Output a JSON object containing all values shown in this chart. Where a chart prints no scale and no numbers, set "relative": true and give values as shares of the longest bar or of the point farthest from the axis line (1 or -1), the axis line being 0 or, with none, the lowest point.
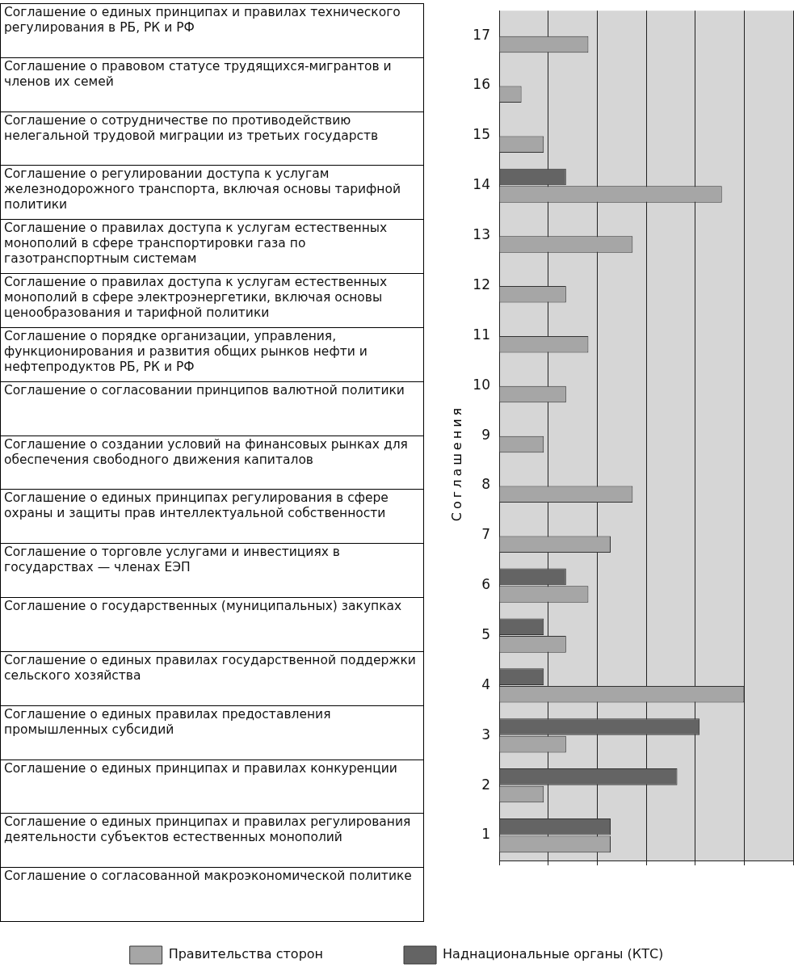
{
  "chart_data": {
    "type": "bar",
    "orientation": "horizontal",
    "relative": true,
    "ylabel": "Соглашения",
    "grid": "x",
    "legend": "bottom",
    "categories": [
      "17",
      "16",
      "15",
      "14",
      "13",
      "12",
      "11",
      "10",
      "9",
      "8",
      "7",
      "6",
      "5",
      "4",
      "3",
      "2",
      "1"
    ],
    "series": [
      {
        "name": "Правительства сторон",
        "color": "#a6a6a6",
        "values": [
          0.364,
          0.091,
          0.182,
          0.909,
          0.545,
          0.273,
          0.364,
          0.273,
          0.182,
          0.545,
          0.455,
          0.364,
          0.273,
          1,
          0.273,
          0.182,
          0.455
        ]
      },
      {
        "name": "Наднациональные органы (КТС)",
        "color": "#646464",
        "values": [
          null,
          null,
          null,
          0.273,
          null,
          null,
          null,
          null,
          null,
          null,
          null,
          0.273,
          0.182,
          0.182,
          0.818,
          0.727,
          0.455
        ]
      }
    ],
    "annotations": [
      "Соглашение о единых принципах и правилах технического регулирования в РБ, РК и РФ",
      "Соглашение о правовом статусе трудящихся-мигрантов и членов их семей",
      "Соглашение о сотрудничестве по противодействию нелегальной трудовой миграции из третьих государств",
      "Соглашение о регулировании доступа к услугам железнодорожного транспорта, включая основы тарифной политики",
      "Соглашение о правилах доступа к услугам естественных монополий в сфере транспортировки газа по газотранспортным системам",
      "Соглашение о правилах доступа к услугам естественных монополий в сфере электроэнергетики, включая основы ценообразования и тарифной политики",
      "Соглашение о порядке организации, управления, функционирования и развития общих рынков нефти и нефтепродуктов РБ, РК и РФ",
      "Соглашение о согласовании принципов валютной политики",
      "Соглашение о создании условий на финансовых рынках для обеспечения свободного движения капиталов",
      "Соглашение о единых принципах регулирования в сфере охраны и защиты прав интеллектуальной собственности",
      "Соглашение о торговле услугами и инвестициях в государствах — членах ЕЭП",
      "Соглашение о государственных (муниципальных) закупках",
      "Соглашение о единых правилах государственной поддержки сельского хозяйства",
      "Соглашение о единых правилах предоставления промышленных субсидий",
      "Соглашение о единых принципах и правилах конкуренции",
      "Соглашение о единых принципах и правилах регулирования деятельности субъектов естественных монополий",
      "Соглашение о согласованной макроэкономической политике"
    ]
  }
}
